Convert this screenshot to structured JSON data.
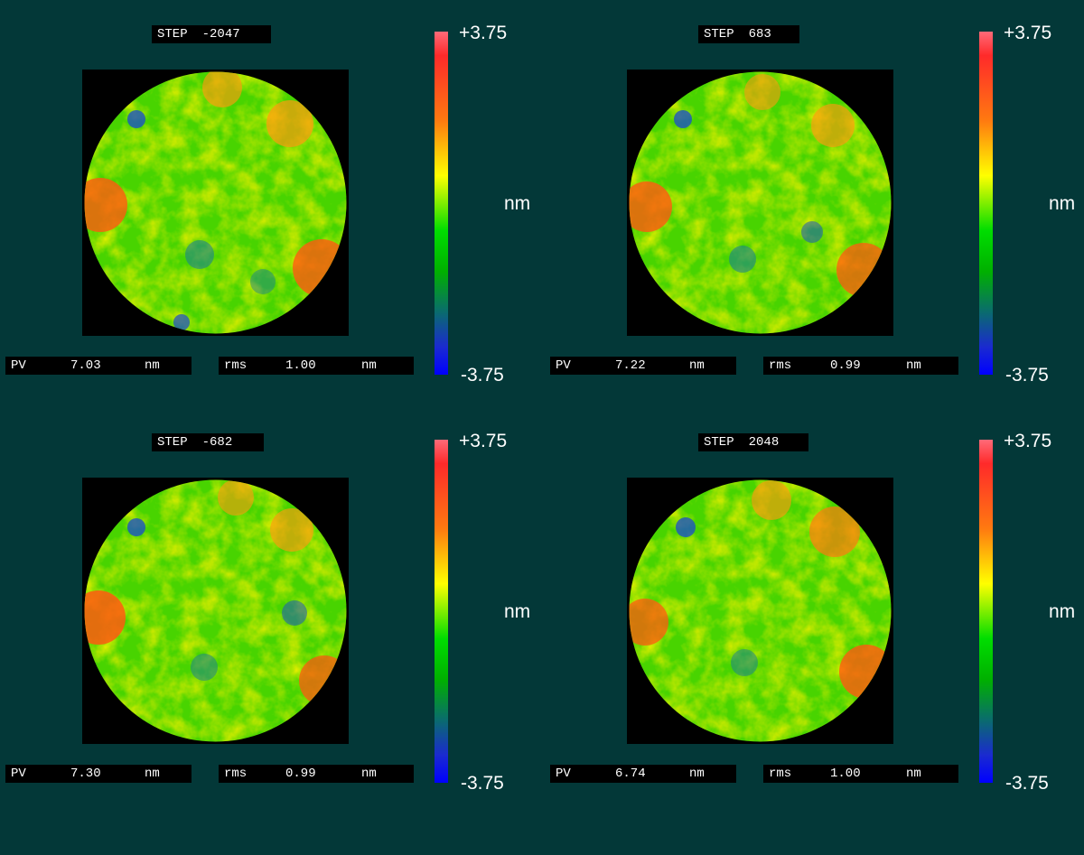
{
  "colorbar": {
    "max": "+3.75",
    "min": "-3.75",
    "unit": "nm"
  },
  "colors": {
    "background": "#033838",
    "label_bg": "#000000"
  },
  "panels": [
    {
      "step_label": "STEP",
      "step_value": "-2047",
      "pv_label": "PV",
      "pv_value": "7.03",
      "pv_unit": "nm",
      "rms_label": "rms",
      "rms_value": "1.00",
      "rms_unit": "nm"
    },
    {
      "step_label": "STEP",
      "step_value": "683",
      "pv_label": "PV",
      "pv_value": "7.22",
      "pv_unit": "nm",
      "rms_label": "rms",
      "rms_value": "0.99",
      "rms_unit": "nm"
    },
    {
      "step_label": "STEP",
      "step_value": "-682",
      "pv_label": "PV",
      "pv_value": "7.30",
      "pv_unit": "nm",
      "rms_label": "rms",
      "rms_value": "0.99",
      "rms_unit": "nm"
    },
    {
      "step_label": "STEP",
      "step_value": "2048",
      "pv_label": "PV",
      "pv_value": "6.74",
      "pv_unit": "nm",
      "rms_label": "rms",
      "rms_value": "1.00",
      "rms_unit": "nm"
    }
  ]
}
